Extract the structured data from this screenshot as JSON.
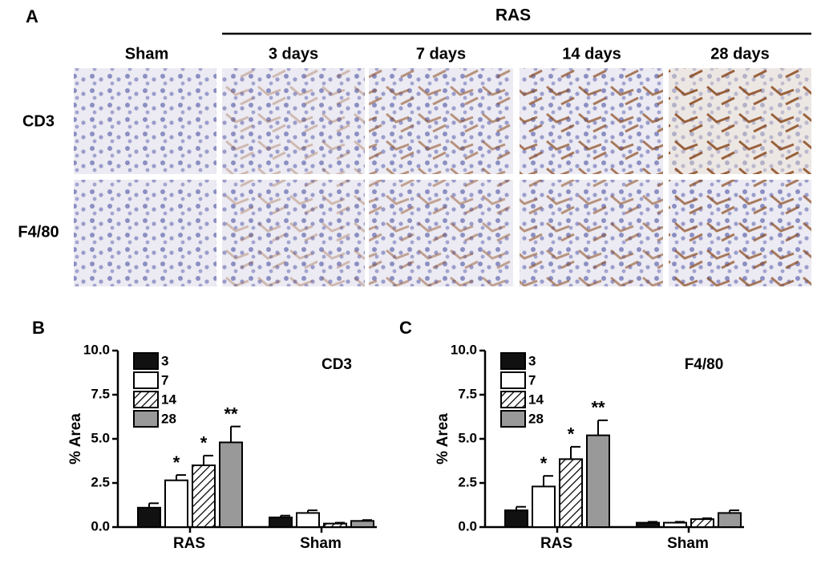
{
  "panel_a": {
    "label": "A",
    "group": "RAS",
    "columns": [
      "Sham",
      "3 days",
      "7 days",
      "14 days",
      "28 days"
    ],
    "rows": [
      "CD3",
      "F4/80"
    ]
  },
  "chart_data": [
    {
      "type": "bar",
      "panel": "B",
      "title": "CD3",
      "y_label": "% Area",
      "categories": [
        "RAS",
        "Sham"
      ],
      "ylim": [
        0,
        10
      ],
      "yticks": [
        {
          "value": 0,
          "label": "0.0"
        },
        {
          "value": 2.5,
          "label": "2.5"
        },
        {
          "value": 5,
          "label": "5.0"
        },
        {
          "value": 7.5,
          "label": "7.5"
        },
        {
          "value": 10,
          "label": "10.0"
        }
      ],
      "series": [
        {
          "name": "3",
          "color": "#111111",
          "values": [
            1.1,
            0.55
          ],
          "errors": [
            0.25,
            0.1
          ],
          "significance": [
            null,
            null
          ]
        },
        {
          "name": "7",
          "color": "#ffffff",
          "values": [
            2.65,
            0.8
          ],
          "errors": [
            0.3,
            0.15
          ],
          "significance": [
            "*",
            null
          ]
        },
        {
          "name": "14",
          "color": "#ffffff",
          "pattern": "hatch",
          "values": [
            3.5,
            0.2
          ],
          "errors": [
            0.55,
            0.05
          ],
          "significance": [
            "*",
            null
          ]
        },
        {
          "name": "28",
          "color": "#999999",
          "values": [
            4.8,
            0.35
          ],
          "errors": [
            0.9,
            0.05
          ],
          "significance": [
            "**",
            null
          ]
        }
      ]
    },
    {
      "type": "bar",
      "panel": "C",
      "title": "F4/80",
      "y_label": "% Area",
      "categories": [
        "RAS",
        "Sham"
      ],
      "ylim": [
        0,
        10
      ],
      "yticks": [
        {
          "value": 0,
          "label": "0.0"
        },
        {
          "value": 2.5,
          "label": "2.5"
        },
        {
          "value": 5,
          "label": "5.0"
        },
        {
          "value": 7.5,
          "label": "7.5"
        },
        {
          "value": 10,
          "label": "10.0"
        }
      ],
      "series": [
        {
          "name": "3",
          "color": "#111111",
          "values": [
            0.95,
            0.25
          ],
          "errors": [
            0.2,
            0.05
          ],
          "significance": [
            null,
            null
          ]
        },
        {
          "name": "7",
          "color": "#ffffff",
          "values": [
            2.3,
            0.25
          ],
          "errors": [
            0.6,
            0.05
          ],
          "significance": [
            "*",
            null
          ]
        },
        {
          "name": "14",
          "color": "#ffffff",
          "pattern": "hatch",
          "values": [
            3.85,
            0.45
          ],
          "errors": [
            0.7,
            0.05
          ],
          "significance": [
            "*",
            null
          ]
        },
        {
          "name": "28",
          "color": "#999999",
          "values": [
            5.2,
            0.8
          ],
          "errors": [
            0.85,
            0.15
          ],
          "significance": [
            "**",
            null
          ]
        }
      ]
    }
  ]
}
